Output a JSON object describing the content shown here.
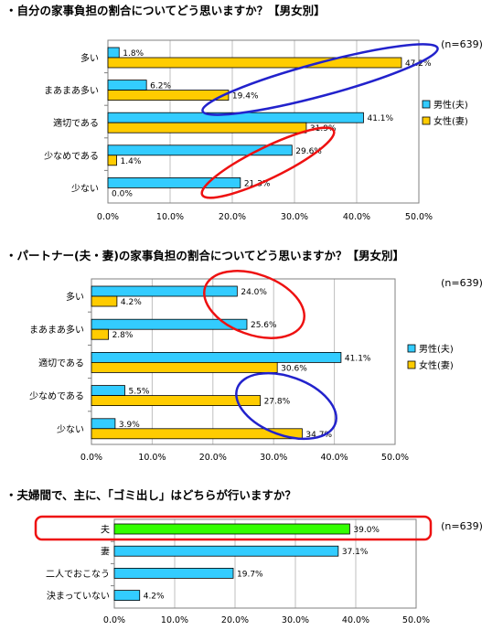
{
  "colors": {
    "male": "#33CCFF",
    "female": "#FFCC00",
    "single": "#33FF00",
    "plot_border": "#808080",
    "gridline": "#BFBFBF",
    "ellipse_blue": "#2222CC",
    "ellipse_red": "#EE1111"
  },
  "chart_data": [
    {
      "type": "bar",
      "orientation": "horizontal",
      "title": "・自分の家事負担の割合についてどう思いますか？【男女別】",
      "sample_note": "(n=639)",
      "categories": [
        "多い",
        "まあまあ多い",
        "適切である",
        "少なめである",
        "少ない"
      ],
      "series": [
        {
          "name": "男性(夫)",
          "color": "#33CCFF",
          "values": [
            1.8,
            6.2,
            41.1,
            29.6,
            21.3
          ],
          "labels": [
            "1.8%",
            "6.2%",
            "41.1%",
            "29.6%",
            "21.3%"
          ]
        },
        {
          "name": "女性(妻)",
          "color": "#FFCC00",
          "values": [
            47.2,
            19.4,
            31.9,
            1.4,
            0.0
          ],
          "labels": [
            "47.2%",
            "19.4%",
            "31.9%",
            "1.4%",
            "0.0%"
          ]
        }
      ],
      "xlim": [
        0,
        50
      ],
      "x_ticks": [
        "0.0%",
        "10.0%",
        "20.0%",
        "30.0%",
        "40.0%",
        "50.0%"
      ],
      "legend_position": "right",
      "highlights": [
        {
          "color": "blue",
          "around": [
            "女性(妻) 多い",
            "女性(妻) まあまあ多い"
          ]
        },
        {
          "color": "red",
          "around": [
            "男性(夫) 少なめである",
            "男性(夫) 少ない"
          ]
        }
      ]
    },
    {
      "type": "bar",
      "orientation": "horizontal",
      "title": "・パートナー(夫・妻)の家事負担の割合についてどう思いますか？【男女別】",
      "sample_note": "(n=639)",
      "categories": [
        "多い",
        "まあまあ多い",
        "適切である",
        "少なめである",
        "少ない"
      ],
      "series": [
        {
          "name": "男性(夫)",
          "color": "#33CCFF",
          "values": [
            24.0,
            25.6,
            41.1,
            5.5,
            3.9
          ],
          "labels": [
            "24.0%",
            "25.6%",
            "41.1%",
            "5.5%",
            "3.9%"
          ]
        },
        {
          "name": "女性(妻)",
          "color": "#FFCC00",
          "values": [
            4.2,
            2.8,
            30.6,
            27.8,
            34.7
          ],
          "labels": [
            "4.2%",
            "2.8%",
            "30.6%",
            "27.8%",
            "34.7%"
          ]
        }
      ],
      "xlim": [
        0,
        50
      ],
      "x_ticks": [
        "0.0%",
        "10.0%",
        "20.0%",
        "30.0%",
        "40.0%",
        "50.0%"
      ],
      "legend_position": "right",
      "highlights": [
        {
          "color": "red",
          "around": [
            "男性(夫) 多い",
            "男性(夫) まあまあ多い"
          ]
        },
        {
          "color": "blue",
          "around": [
            "女性(妻) 少なめである",
            "女性(妻) 少ない"
          ]
        }
      ]
    },
    {
      "type": "bar",
      "orientation": "horizontal",
      "title": "・夫婦間で、主に、「ゴミ出し」はどちらが行いますか？",
      "sample_note": "(n=639)",
      "categories": [
        "夫",
        "妻",
        "二人でおこなう",
        "決まっていない"
      ],
      "series": [
        {
          "name": "",
          "values": [
            39.0,
            37.1,
            19.7,
            4.2
          ],
          "labels": [
            "39.0%",
            "37.1%",
            "19.7%",
            "4.2%"
          ],
          "colors": [
            "#33FF00",
            "#33CCFF",
            "#33CCFF",
            "#33CCFF"
          ]
        }
      ],
      "xlim": [
        0,
        50
      ],
      "x_ticks": [
        "0.0%",
        "10.0%",
        "20.0%",
        "30.0%",
        "40.0%",
        "50.0%"
      ],
      "highlights": [
        {
          "color": "red",
          "around": [
            "夫"
          ]
        }
      ]
    }
  ]
}
